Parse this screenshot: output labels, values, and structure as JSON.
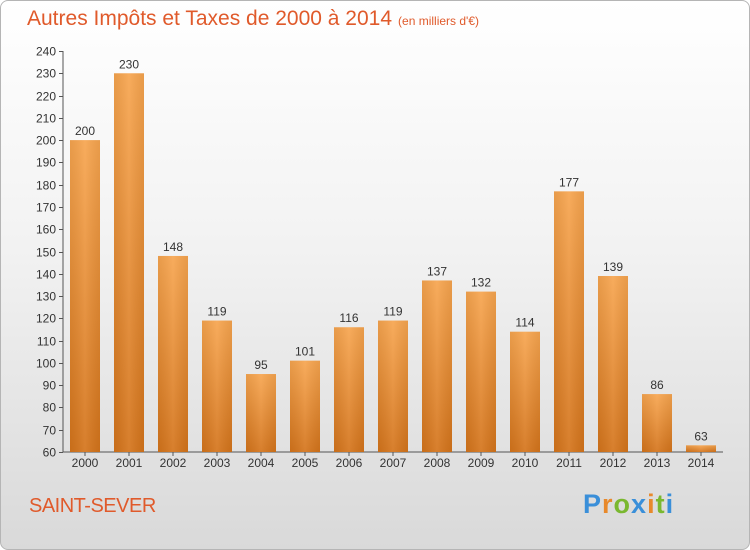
{
  "chart_data": {
    "type": "bar",
    "title": "Autres Impôts et Taxes de 2000 à 2014",
    "subtitle": "(en milliers d'€)",
    "categories": [
      "2000",
      "2001",
      "2002",
      "2003",
      "2004",
      "2005",
      "2006",
      "2007",
      "2008",
      "2009",
      "2010",
      "2011",
      "2012",
      "2013",
      "2014"
    ],
    "values": [
      200,
      230,
      148,
      119,
      95,
      101,
      116,
      119,
      137,
      132,
      114,
      177,
      139,
      86,
      63
    ],
    "ylim": [
      60,
      240
    ],
    "yticks": [
      60,
      70,
      80,
      90,
      100,
      110,
      120,
      130,
      140,
      150,
      160,
      170,
      180,
      190,
      200,
      210,
      220,
      230,
      240
    ],
    "grid": false,
    "bar_color_top": "#f7a54f",
    "bar_color_bottom": "#d4741b"
  },
  "footer": {
    "city": "SAINT-SEVER",
    "logo_letters": [
      "P",
      "r",
      "o",
      "x",
      "i",
      "t",
      "i"
    ],
    "logo_colors": [
      "#3a8fd9",
      "#e8892b",
      "#7ab830",
      "#3a8fd9",
      "#e8892b",
      "#7ab830",
      "#3a8fd9"
    ]
  }
}
